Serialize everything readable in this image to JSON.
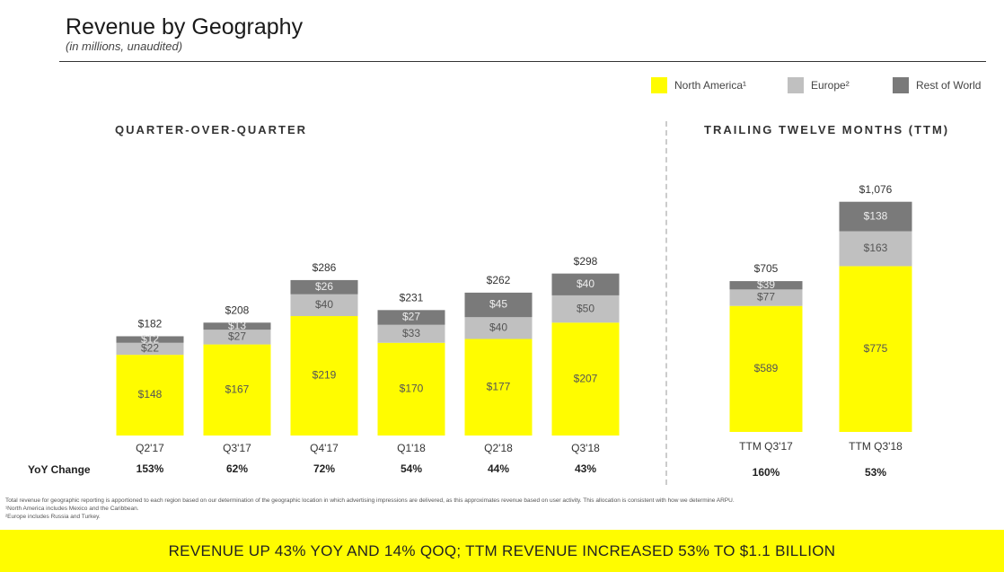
{
  "header": {
    "title": "Revenue by Geography",
    "subtitle": "(in millions, unaudited)"
  },
  "legend": [
    {
      "label": "North America¹",
      "color": "#fffc00"
    },
    {
      "label": "Europe²",
      "color": "#c0c0c0"
    },
    {
      "label": "Rest of World",
      "color": "#7a7a7a"
    }
  ],
  "sections": {
    "qoq": "QUARTER-OVER-QUARTER",
    "ttm": "TRAILING TWELVE MONTHS (TTM)"
  },
  "yoy_label": "YoY Change",
  "footnotes": [
    "Total revenue for geographic reporting is apportioned to each region based on our determination of the geographic location in which advertising impressions are delivered, as this approximates revenue based on user activity. This allocation is consistent with how we determine ARPU.",
    "¹North America includes Mexico and the Caribbean.",
    "²Europe includes Russia and Turkey."
  ],
  "banner": "REVENUE UP 43% YOY AND 14% QOQ; TTM REVENUE INCREASED 53% TO $1.1 BILLION",
  "chart_data": [
    {
      "type": "bar",
      "stacked": true,
      "title": "QUARTER-OVER-QUARTER",
      "categories": [
        "Q2'17",
        "Q3'17",
        "Q4'17",
        "Q1'18",
        "Q2'18",
        "Q3'18"
      ],
      "series": [
        {
          "name": "North America¹",
          "values": [
            148,
            167,
            219,
            170,
            177,
            207
          ]
        },
        {
          "name": "Europe²",
          "values": [
            22,
            27,
            40,
            33,
            40,
            50
          ]
        },
        {
          "name": "Rest of World",
          "values": [
            12,
            13,
            26,
            27,
            45,
            40
          ]
        }
      ],
      "value_labels": [
        [
          "$148",
          "$167",
          "$219",
          "$170",
          "$177",
          "$207"
        ],
        [
          "$22",
          "$27",
          "$40",
          "$33",
          "$40",
          "$50"
        ],
        [
          "$12",
          "$13",
          "$26",
          "$27",
          "$45",
          "$40"
        ]
      ],
      "totals": [
        "$182",
        "$208",
        "$286",
        "$231",
        "$262",
        "$298"
      ],
      "yoy_change": [
        "153%",
        "62%",
        "72%",
        "54%",
        "44%",
        "43%"
      ]
    },
    {
      "type": "bar",
      "stacked": true,
      "title": "TRAILING TWELVE MONTHS (TTM)",
      "categories": [
        "TTM Q3'17",
        "TTM Q3'18"
      ],
      "series": [
        {
          "name": "North America¹",
          "values": [
            589,
            775
          ]
        },
        {
          "name": "Europe²",
          "values": [
            77,
            163
          ]
        },
        {
          "name": "Rest of World",
          "values": [
            39,
            138
          ]
        }
      ],
      "value_labels": [
        [
          "$589",
          "$775"
        ],
        [
          "$77",
          "$163"
        ],
        [
          "$39",
          "$138"
        ]
      ],
      "totals": [
        "$705",
        "$1,076"
      ],
      "yoy_change": [
        "160%",
        "53%"
      ]
    }
  ]
}
